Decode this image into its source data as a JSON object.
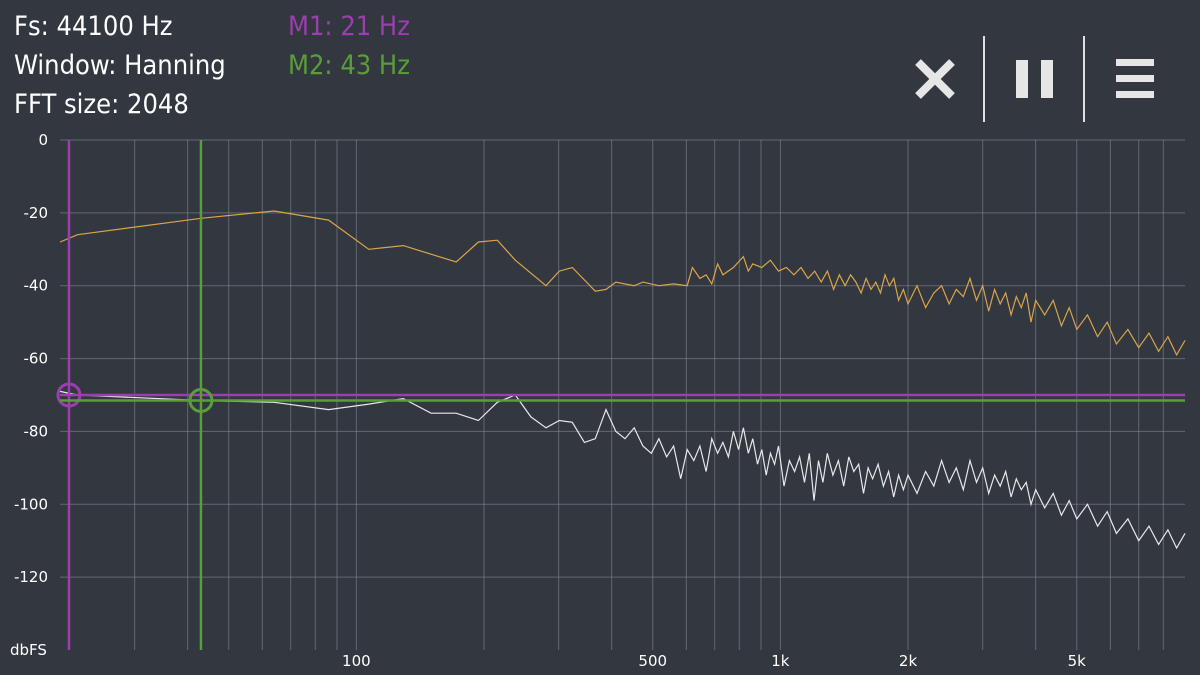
{
  "header": {
    "fs": "Fs: 44100 Hz",
    "window": "Window: Hanning",
    "fft": "FFT size: 2048",
    "m1": "M1: 21 Hz",
    "m2": "M2: 43 Hz"
  },
  "toolbar": {
    "close_icon": "close-icon",
    "pause_icon": "pause-icon",
    "menu_icon": "menu-icon"
  },
  "colors": {
    "background": "#323740",
    "grid": "#8a8f98",
    "m1": "#9b3fae",
    "m2": "#5a9e3a",
    "peak_series": "#d9a54a",
    "spectrum_series": "#e8e8e8"
  },
  "chart_data": {
    "type": "line",
    "x_scale": "log",
    "xlim": [
      20,
      9000
    ],
    "ylim": [
      -140,
      0
    ],
    "ylabel": "dbFS",
    "y_ticks": [
      0,
      -20,
      -40,
      -60,
      -80,
      -100,
      -120
    ],
    "y_tick_labels": [
      "0",
      "-20",
      "-40",
      "-60",
      "-80",
      "-100",
      "-120"
    ],
    "x_ticks": [
      100,
      500,
      1000,
      2000,
      5000
    ],
    "x_tick_labels": [
      "100",
      "500",
      "1k",
      "2k",
      "5k"
    ],
    "markers": [
      {
        "freq": 21,
        "level": -70
      },
      {
        "freq": 43,
        "level": -71.5
      }
    ],
    "series": [
      {
        "points": [
          [
            20,
            -28
          ],
          [
            22,
            -26
          ],
          [
            43,
            -21.5
          ],
          [
            64,
            -19.5
          ],
          [
            86,
            -22
          ],
          [
            107,
            -30
          ],
          [
            129,
            -29
          ],
          [
            172,
            -33.5
          ],
          [
            194,
            -28
          ],
          [
            215,
            -27.5
          ],
          [
            237,
            -33
          ],
          [
            280,
            -40
          ],
          [
            301,
            -36
          ],
          [
            323,
            -35
          ],
          [
            366,
            -41.5
          ],
          [
            388,
            -41
          ],
          [
            409,
            -39
          ],
          [
            452,
            -40
          ],
          [
            474,
            -39
          ],
          [
            517,
            -40
          ],
          [
            560,
            -39.5
          ],
          [
            603,
            -40
          ],
          [
            620,
            -35
          ],
          [
            646,
            -38
          ],
          [
            668,
            -37
          ],
          [
            689,
            -39.5
          ],
          [
            711,
            -34
          ],
          [
            732,
            -37
          ],
          [
            775,
            -35
          ],
          [
            818,
            -32
          ],
          [
            840,
            -36
          ],
          [
            861,
            -34
          ],
          [
            904,
            -35
          ],
          [
            947,
            -33
          ],
          [
            990,
            -36
          ],
          [
            1033,
            -35
          ],
          [
            1076,
            -37
          ],
          [
            1119,
            -35
          ],
          [
            1162,
            -38
          ],
          [
            1205,
            -36
          ],
          [
            1248,
            -39
          ],
          [
            1291,
            -36
          ],
          [
            1335,
            -41
          ],
          [
            1378,
            -37
          ],
          [
            1421,
            -40
          ],
          [
            1464,
            -37
          ],
          [
            1507,
            -39
          ],
          [
            1550,
            -42
          ],
          [
            1593,
            -38
          ],
          [
            1636,
            -41
          ],
          [
            1679,
            -39
          ],
          [
            1722,
            -42
          ],
          [
            1765,
            -37
          ],
          [
            1808,
            -40
          ],
          [
            1851,
            -38
          ],
          [
            1900,
            -44
          ],
          [
            1950,
            -41
          ],
          [
            2000,
            -45
          ],
          [
            2100,
            -40
          ],
          [
            2200,
            -46
          ],
          [
            2300,
            -42
          ],
          [
            2400,
            -40
          ],
          [
            2500,
            -45
          ],
          [
            2600,
            -41
          ],
          [
            2700,
            -43
          ],
          [
            2800,
            -38
          ],
          [
            2900,
            -44
          ],
          [
            3000,
            -40
          ],
          [
            3100,
            -47
          ],
          [
            3200,
            -41
          ],
          [
            3300,
            -45
          ],
          [
            3400,
            -42
          ],
          [
            3500,
            -48
          ],
          [
            3600,
            -43
          ],
          [
            3700,
            -46
          ],
          [
            3800,
            -42
          ],
          [
            3900,
            -50
          ],
          [
            4000,
            -44
          ],
          [
            4200,
            -48
          ],
          [
            4400,
            -44
          ],
          [
            4600,
            -51
          ],
          [
            4800,
            -46
          ],
          [
            5000,
            -52
          ],
          [
            5300,
            -48
          ],
          [
            5600,
            -54
          ],
          [
            5900,
            -50
          ],
          [
            6200,
            -56
          ],
          [
            6600,
            -52
          ],
          [
            7000,
            -57
          ],
          [
            7400,
            -53
          ],
          [
            7800,
            -58
          ],
          [
            8200,
            -54
          ],
          [
            8600,
            -59
          ],
          [
            9000,
            -55
          ]
        ]
      },
      {
        "points": [
          [
            20,
            -69
          ],
          [
            22,
            -70
          ],
          [
            43,
            -71.5
          ],
          [
            64,
            -72
          ],
          [
            86,
            -74
          ],
          [
            107,
            -72.5
          ],
          [
            129,
            -71
          ],
          [
            150,
            -75
          ],
          [
            172,
            -75
          ],
          [
            194,
            -77
          ],
          [
            215,
            -72
          ],
          [
            237,
            -70
          ],
          [
            258,
            -76
          ],
          [
            280,
            -79
          ],
          [
            301,
            -77
          ],
          [
            323,
            -77.5
          ],
          [
            345,
            -83
          ],
          [
            366,
            -82
          ],
          [
            388,
            -74
          ],
          [
            409,
            -80
          ],
          [
            430,
            -82
          ],
          [
            452,
            -79
          ],
          [
            474,
            -84
          ],
          [
            496,
            -86
          ],
          [
            517,
            -82
          ],
          [
            539,
            -87
          ],
          [
            560,
            -84
          ],
          [
            582,
            -93
          ],
          [
            603,
            -85
          ],
          [
            625,
            -88
          ],
          [
            646,
            -84
          ],
          [
            668,
            -91
          ],
          [
            689,
            -82
          ],
          [
            711,
            -86
          ],
          [
            732,
            -83
          ],
          [
            754,
            -87
          ],
          [
            775,
            -80
          ],
          [
            797,
            -85
          ],
          [
            818,
            -79
          ],
          [
            840,
            -86
          ],
          [
            861,
            -82
          ],
          [
            883,
            -89
          ],
          [
            904,
            -85
          ],
          [
            926,
            -92
          ],
          [
            947,
            -86
          ],
          [
            969,
            -89
          ],
          [
            990,
            -84
          ],
          [
            1020,
            -95
          ],
          [
            1050,
            -88
          ],
          [
            1080,
            -91
          ],
          [
            1110,
            -87
          ],
          [
            1140,
            -94
          ],
          [
            1170,
            -86
          ],
          [
            1200,
            -99
          ],
          [
            1230,
            -88
          ],
          [
            1260,
            -94
          ],
          [
            1290,
            -86
          ],
          [
            1330,
            -92
          ],
          [
            1370,
            -88
          ],
          [
            1410,
            -95
          ],
          [
            1450,
            -87
          ],
          [
            1490,
            -91
          ],
          [
            1530,
            -89
          ],
          [
            1570,
            -97
          ],
          [
            1610,
            -90
          ],
          [
            1650,
            -93
          ],
          [
            1700,
            -89
          ],
          [
            1750,
            -95
          ],
          [
            1800,
            -91
          ],
          [
            1850,
            -98
          ],
          [
            1900,
            -92
          ],
          [
            1950,
            -96
          ],
          [
            2000,
            -92
          ],
          [
            2100,
            -97
          ],
          [
            2200,
            -91
          ],
          [
            2300,
            -95
          ],
          [
            2400,
            -88
          ],
          [
            2500,
            -94
          ],
          [
            2600,
            -90
          ],
          [
            2700,
            -96
          ],
          [
            2800,
            -88
          ],
          [
            2900,
            -94
          ],
          [
            3000,
            -90
          ],
          [
            3100,
            -97
          ],
          [
            3200,
            -92
          ],
          [
            3300,
            -95
          ],
          [
            3400,
            -91
          ],
          [
            3500,
            -98
          ],
          [
            3600,
            -93
          ],
          [
            3700,
            -96
          ],
          [
            3800,
            -94
          ],
          [
            3900,
            -100
          ],
          [
            4000,
            -96
          ],
          [
            4200,
            -101
          ],
          [
            4400,
            -97
          ],
          [
            4600,
            -103
          ],
          [
            4800,
            -99
          ],
          [
            5000,
            -104
          ],
          [
            5300,
            -100
          ],
          [
            5600,
            -106
          ],
          [
            5900,
            -102
          ],
          [
            6200,
            -108
          ],
          [
            6600,
            -104
          ],
          [
            7000,
            -110
          ],
          [
            7400,
            -106
          ],
          [
            7800,
            -111
          ],
          [
            8200,
            -107
          ],
          [
            8600,
            -112
          ],
          [
            9000,
            -108
          ]
        ]
      }
    ]
  }
}
